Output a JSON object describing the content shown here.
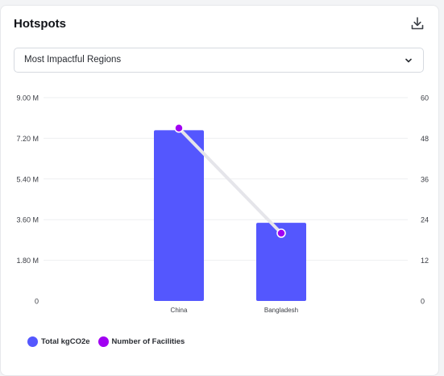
{
  "header": {
    "title": "Hotspots",
    "download_icon": "download-icon"
  },
  "filter": {
    "selected": "Most Impactful Regions",
    "chevron_icon": "chevron-down-icon"
  },
  "colors": {
    "bar": "#5457fe",
    "line": "#e5e5ea",
    "point": "#a100f2",
    "point_stroke": "#ffffff",
    "grid": "#eeeff1",
    "tick_text": "#3a3d44"
  },
  "chart_data": {
    "type": "bar",
    "categories": [
      "China",
      "Bangladesh"
    ],
    "series": [
      {
        "name": "Total kgCO2e",
        "type": "bar",
        "axis": "left",
        "values": [
          7560000,
          3460000
        ]
      },
      {
        "name": "Number of Facilities",
        "type": "line",
        "axis": "right",
        "values": [
          51,
          20
        ]
      }
    ],
    "y_left": {
      "ylim": [
        0,
        9000000
      ],
      "ticks": [
        0,
        1800000,
        3600000,
        5400000,
        7200000,
        9000000
      ],
      "tick_labels": [
        "0",
        "1.80 M",
        "3.60 M",
        "5.40 M",
        "7.20 M",
        "9.00 M"
      ]
    },
    "y_right": {
      "ylim": [
        0,
        60
      ],
      "ticks": [
        0,
        12,
        24,
        36,
        48,
        60
      ],
      "tick_labels": [
        "0",
        "12",
        "24",
        "36",
        "48",
        "60"
      ]
    },
    "grid": true,
    "legend_position": "bottom-left"
  }
}
